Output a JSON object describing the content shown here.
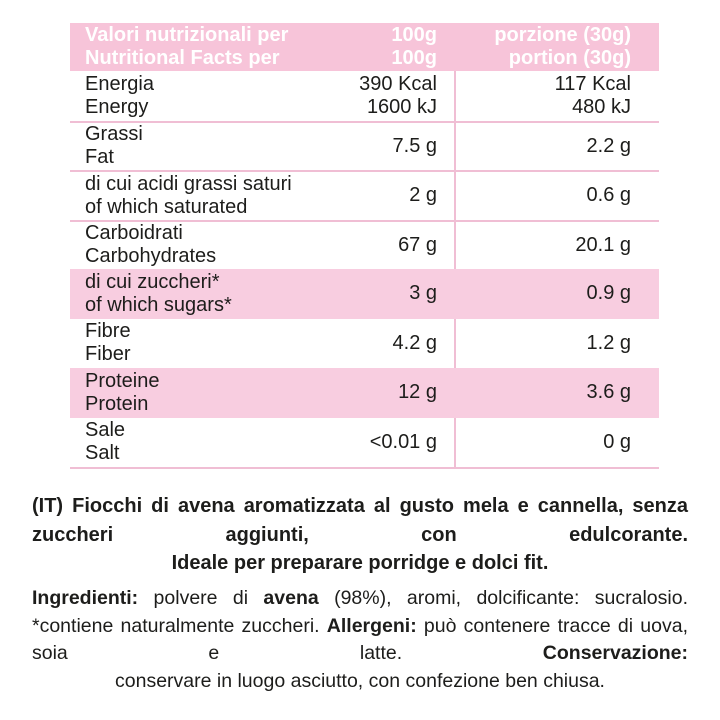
{
  "colors": {
    "header_bg": "#f7c4d9",
    "header_text": "#ffffff",
    "highlight_bg": "#f8cde0",
    "divider": "#f0bed4",
    "text": "#1d1d1b"
  },
  "table": {
    "header": {
      "label_l1": "Valori nutrizionali per",
      "label_l2": "Nutritional Facts per",
      "per100_l1": "100g",
      "per100_l2": "100g",
      "portion_l1": "porzione (30g)",
      "portion_l2": "portion (30g)"
    },
    "rows": [
      {
        "label_it": "Energia",
        "label_en": "Energy",
        "v100_l1": "390 Kcal",
        "v100_l2": "1600 kJ",
        "vport_l1": "117 Kcal",
        "vport_l2": "480 kJ"
      },
      {
        "label_it": "Grassi",
        "label_en": "Fat",
        "v100_l1": "7.5 g",
        "vport_l1": "2.2 g"
      },
      {
        "label_it": "di cui acidi grassi saturi",
        "label_en": "of which saturated",
        "v100_l1": "2 g",
        "vport_l1": "0.6 g"
      },
      {
        "label_it": "Carboidrati",
        "label_en": "Carbohydrates",
        "v100_l1": "67 g",
        "vport_l1": "20.1 g"
      },
      {
        "label_it": "di cui zuccheri*",
        "label_en": "of which sugars*",
        "v100_l1": "3 g",
        "vport_l1": "0.9 g"
      },
      {
        "label_it": "Fibre",
        "label_en": "Fiber",
        "v100_l1": "4.2 g",
        "vport_l1": "1.2 g"
      },
      {
        "label_it": "Proteine",
        "label_en": "Protein",
        "v100_l1": "12 g",
        "vport_l1": "3.6 g"
      },
      {
        "label_it": "Sale",
        "label_en": "Salt",
        "v100_l1": "<0.01 g",
        "vport_l1": "0 g"
      }
    ]
  },
  "description": {
    "part1": "(IT) Fiocchi di avena aromatizzata al gusto mela e cannella, senza zuccheri aggiunti, con edulcorante.",
    "part2": "Ideale per preparare porridge e dolci fit."
  },
  "info": {
    "segments": [
      {
        "text": "Ingredienti:",
        "bold": true
      },
      {
        "text": " polvere di ",
        "bold": false
      },
      {
        "text": "avena",
        "bold": true
      },
      {
        "text": " (98%), aromi, dolcificante: sucralosio. *contiene naturalmente zuccheri. ",
        "bold": false
      },
      {
        "text": "Allergeni:",
        "bold": true
      },
      {
        "text": " può contenere tracce di uova, soia e latte. ",
        "bold": false
      },
      {
        "text": "Conservazione:",
        "bold": true
      }
    ],
    "last_line": "conservare in luogo asciutto, con confezione ben chiusa."
  }
}
